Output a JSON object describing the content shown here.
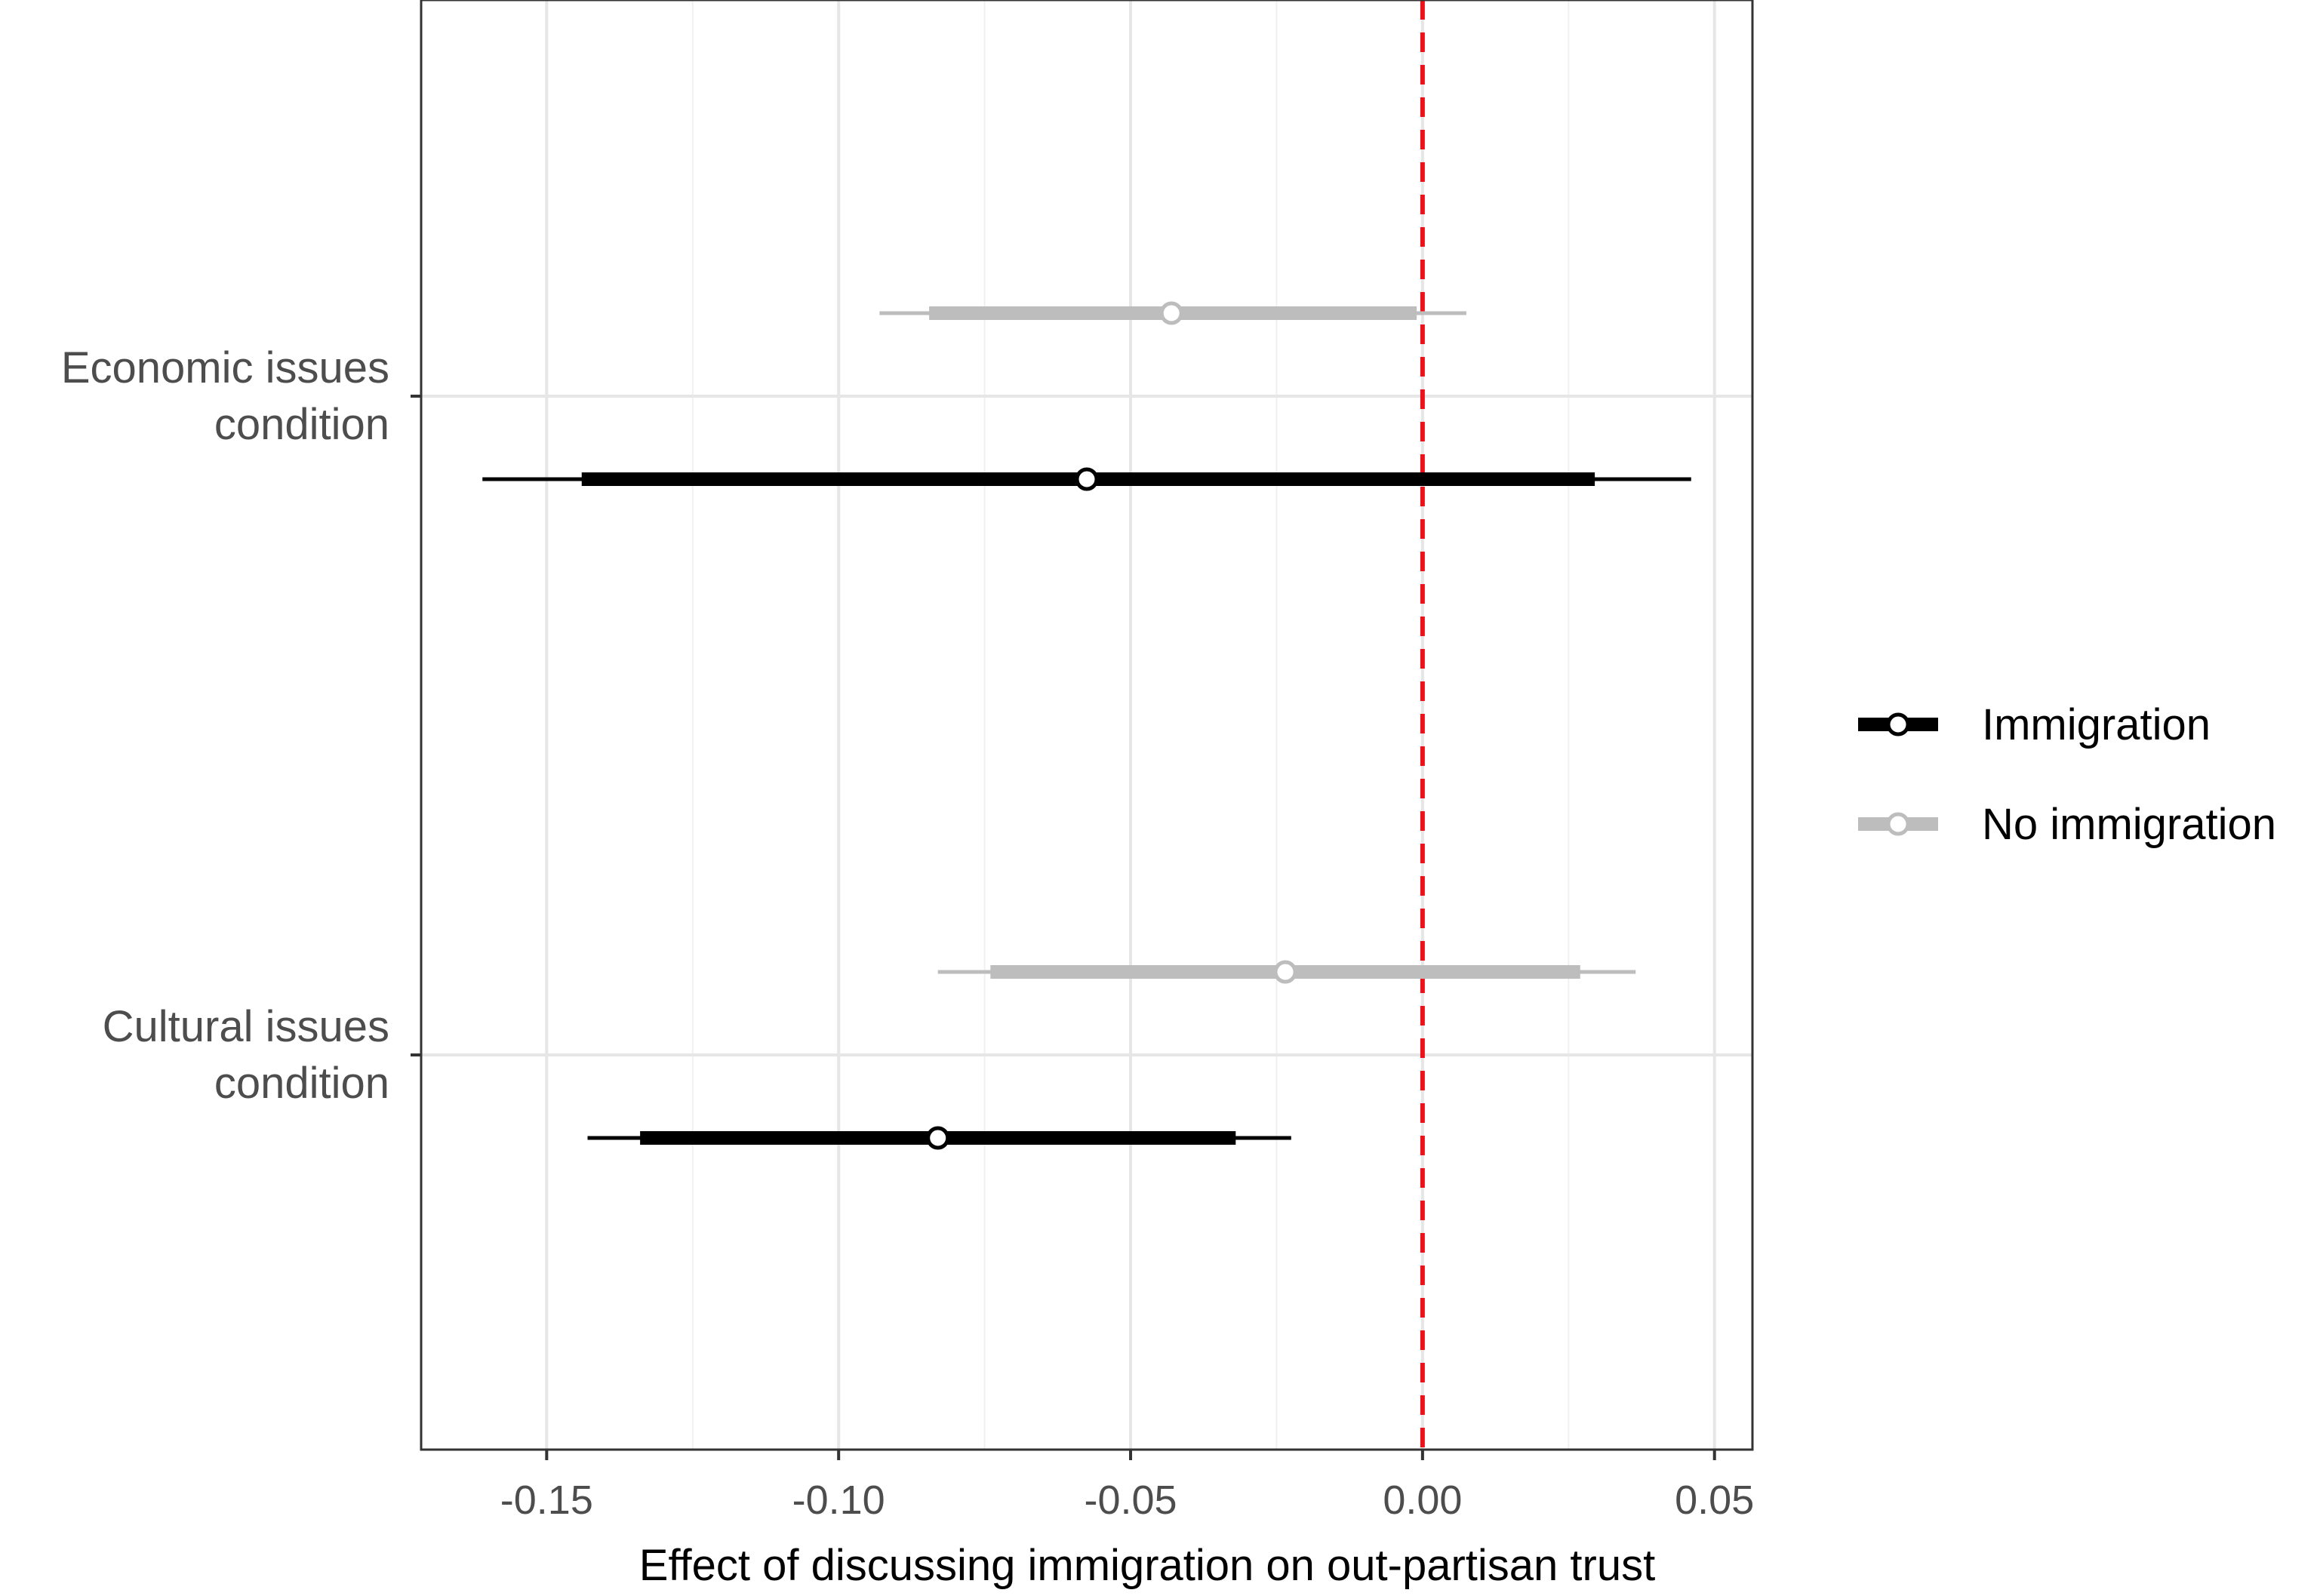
{
  "chart_data": {
    "type": "coefficient-plot",
    "title": "",
    "xlabel": "Effect of discussing immigration on out-partisan trust",
    "ylabel": "",
    "xlim": [
      -0.1715,
      0.0565
    ],
    "x_ticks": [
      -0.15,
      -0.1,
      -0.05,
      0.0,
      0.05
    ],
    "x_tick_labels": [
      "-0.15",
      "-0.10",
      "-0.05",
      "0.00",
      "0.05"
    ],
    "categories": [
      "Economic issues\ncondition",
      "Cultural issues\ncondition"
    ],
    "reference_line": {
      "x": 0.0,
      "style": "dashed",
      "color": "#e8131b"
    },
    "grid": true,
    "legend_position": "right",
    "series": [
      {
        "name": "Immigration",
        "color": "#000000",
        "points": [
          {
            "category": "Economic issues\ncondition",
            "estimate": -0.0575,
            "ci_inner": [
              -0.144,
              0.0295
            ],
            "ci_outer": [
              -0.161,
              0.046
            ]
          },
          {
            "category": "Cultural issues\ncondition",
            "estimate": -0.083,
            "ci_inner": [
              -0.134,
              -0.032
            ],
            "ci_outer": [
              -0.143,
              -0.0225
            ]
          }
        ]
      },
      {
        "name": "No immigration",
        "color": "#bdbdbd",
        "points": [
          {
            "category": "Economic issues\ncondition",
            "estimate": -0.043,
            "ci_inner": [
              -0.0845,
              -0.001
            ],
            "ci_outer": [
              -0.093,
              0.0075
            ]
          },
          {
            "category": "Cultural issues\ncondition",
            "estimate": -0.0235,
            "ci_inner": [
              -0.074,
              0.027
            ],
            "ci_outer": [
              -0.083,
              0.0365
            ]
          }
        ]
      }
    ]
  }
}
